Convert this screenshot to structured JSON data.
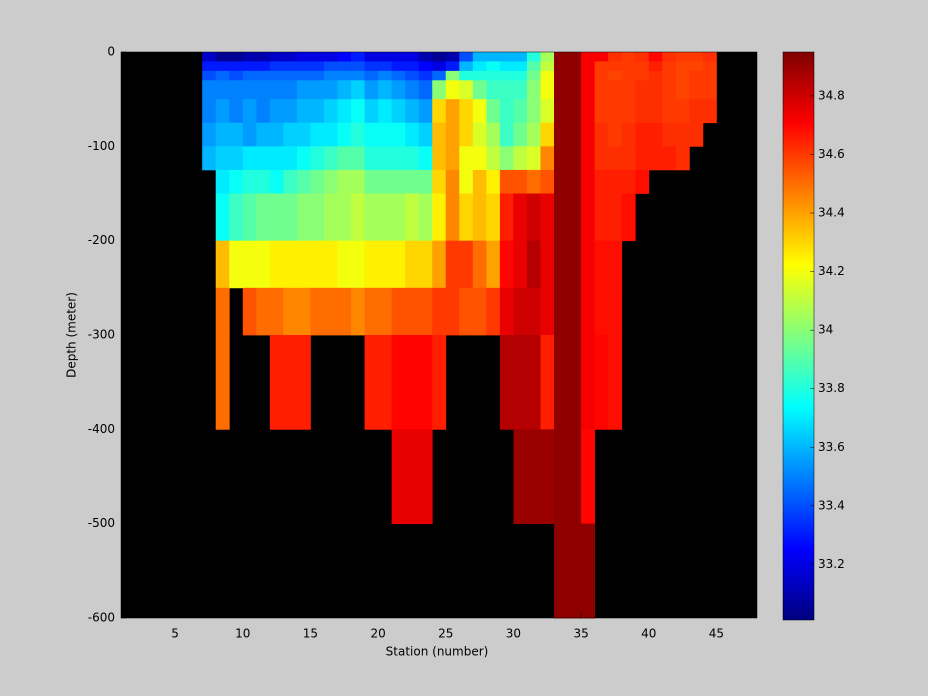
{
  "chart_data": {
    "type": "heatmap",
    "xlabel": "Station (number)",
    "ylabel": "Depth (meter)",
    "xlim": [
      1,
      48
    ],
    "ylim": [
      -600,
      0
    ],
    "xticks": [
      5,
      10,
      15,
      20,
      25,
      30,
      35,
      40,
      45
    ],
    "yticks": [
      0,
      -100,
      -200,
      -300,
      -400,
      -500,
      -600
    ],
    "x_edges": [
      7,
      8,
      9,
      10,
      11,
      12,
      13,
      14,
      15,
      16,
      17,
      18,
      19,
      20,
      21,
      22,
      23,
      24,
      25,
      26,
      27,
      28,
      29,
      30,
      31,
      32,
      33,
      34,
      35,
      36,
      37,
      38,
      39,
      40,
      41,
      42,
      43,
      44,
      45
    ],
    "y_edges": [
      0,
      -10,
      -20,
      -30,
      -50,
      -75,
      -100,
      -125,
      -150,
      -200,
      -250,
      -300,
      -400,
      -500,
      -600
    ],
    "z": [
      [
        33.15,
        33.3,
        33.4,
        33.5,
        33.5,
        33.55,
        33.6,
        null,
        null,
        null,
        null,
        null,
        null,
        null
      ],
      [
        33.05,
        33.3,
        33.45,
        33.5,
        33.55,
        33.6,
        33.65,
        33.7,
        33.75,
        34.35,
        34.5,
        34.5,
        null,
        null
      ],
      [
        33.05,
        33.3,
        33.4,
        33.5,
        33.5,
        33.6,
        33.65,
        33.75,
        33.85,
        34.2,
        null,
        null,
        null,
        null
      ],
      [
        33.1,
        33.3,
        33.45,
        33.5,
        33.55,
        33.55,
        33.7,
        33.8,
        33.9,
        34.2,
        34.55,
        null,
        null,
        null
      ],
      [
        33.1,
        33.3,
        33.45,
        33.5,
        33.5,
        33.6,
        33.7,
        33.8,
        33.95,
        34.2,
        34.5,
        null,
        null,
        null
      ],
      [
        33.15,
        33.35,
        33.45,
        33.5,
        33.55,
        33.6,
        33.7,
        33.75,
        33.95,
        34.25,
        34.5,
        34.65,
        null,
        null
      ],
      [
        33.15,
        33.35,
        33.45,
        33.5,
        33.55,
        33.65,
        33.7,
        33.85,
        33.95,
        34.25,
        34.45,
        34.65,
        null,
        null
      ],
      [
        33.2,
        33.35,
        33.45,
        33.55,
        33.6,
        33.65,
        33.75,
        33.9,
        34.0,
        34.25,
        34.45,
        34.65,
        null,
        null
      ],
      [
        33.2,
        33.35,
        33.45,
        33.55,
        33.6,
        33.7,
        33.8,
        33.95,
        34.0,
        34.25,
        34.5,
        null,
        null,
        null
      ],
      [
        33.2,
        33.4,
        33.5,
        33.55,
        33.65,
        33.7,
        33.85,
        34.0,
        34.05,
        34.25,
        34.5,
        null,
        null,
        null
      ],
      [
        33.25,
        33.4,
        33.5,
        33.6,
        33.7,
        33.75,
        33.9,
        34.05,
        34.05,
        34.2,
        34.5,
        null,
        null,
        null
      ],
      [
        33.3,
        33.4,
        33.5,
        33.65,
        33.75,
        33.8,
        33.9,
        34.05,
        34.1,
        34.2,
        34.45,
        null,
        null,
        null
      ],
      [
        33.2,
        33.35,
        33.45,
        33.55,
        33.65,
        33.75,
        33.8,
        33.95,
        34.05,
        34.25,
        34.5,
        34.65,
        null,
        null
      ],
      [
        33.2,
        33.35,
        33.5,
        33.6,
        33.7,
        33.75,
        33.8,
        33.95,
        34.05,
        34.25,
        34.5,
        34.65,
        null,
        null
      ],
      [
        33.2,
        33.3,
        33.45,
        33.55,
        33.65,
        33.75,
        33.8,
        33.95,
        34.05,
        34.25,
        34.55,
        34.7,
        34.75,
        null
      ],
      [
        33.2,
        33.3,
        33.4,
        33.5,
        33.6,
        33.7,
        33.8,
        33.95,
        34.1,
        34.3,
        34.55,
        34.7,
        34.75,
        null
      ],
      [
        33.1,
        33.25,
        33.35,
        33.45,
        33.55,
        33.65,
        33.75,
        33.95,
        34.05,
        34.3,
        34.55,
        34.7,
        34.75,
        null
      ],
      [
        33.05,
        33.2,
        33.45,
        34.0,
        34.3,
        34.35,
        34.35,
        34.3,
        34.25,
        34.4,
        34.6,
        34.65,
        null,
        null
      ],
      [
        33.1,
        33.3,
        34.0,
        34.2,
        34.4,
        34.4,
        34.4,
        34.45,
        34.45,
        34.6,
        34.6,
        null,
        null,
        null
      ],
      [
        33.4,
        33.6,
        33.8,
        34.15,
        34.3,
        34.3,
        34.2,
        34.2,
        34.3,
        34.6,
        34.55,
        null,
        null,
        null
      ],
      [
        33.6,
        33.7,
        33.8,
        33.95,
        34.2,
        34.15,
        34.2,
        34.35,
        34.35,
        34.5,
        34.55,
        null,
        null,
        null
      ],
      [
        33.6,
        33.75,
        33.8,
        33.85,
        33.95,
        34.05,
        34.1,
        34.25,
        34.3,
        34.4,
        34.6,
        null,
        null,
        null
      ],
      [
        33.6,
        33.7,
        33.8,
        33.85,
        33.85,
        33.85,
        34.0,
        34.55,
        34.65,
        34.7,
        34.75,
        34.85,
        null,
        null
      ],
      [
        33.6,
        33.7,
        33.8,
        33.85,
        33.9,
        33.95,
        34.1,
        34.55,
        34.75,
        34.75,
        34.8,
        34.85,
        34.9,
        null
      ],
      [
        33.8,
        33.9,
        33.95,
        34.0,
        34.0,
        34.05,
        34.15,
        34.5,
        34.8,
        34.85,
        34.8,
        34.85,
        34.9,
        null
      ],
      [
        34.05,
        34.1,
        34.2,
        34.2,
        34.15,
        34.3,
        34.45,
        34.55,
        34.75,
        34.75,
        34.75,
        34.65,
        34.9,
        null
      ],
      [
        34.92,
        34.92,
        34.92,
        34.92,
        34.92,
        34.92,
        34.92,
        34.92,
        34.92,
        34.92,
        34.92,
        34.92,
        34.92,
        34.92
      ],
      [
        34.92,
        34.92,
        34.92,
        34.92,
        34.92,
        34.92,
        34.92,
        34.92,
        34.92,
        34.92,
        34.92,
        34.92,
        34.92,
        34.92
      ],
      [
        34.72,
        34.72,
        34.72,
        34.72,
        34.72,
        34.72,
        34.72,
        34.72,
        34.72,
        34.72,
        34.72,
        34.72,
        34.7,
        34.92
      ],
      [
        34.72,
        34.6,
        34.6,
        34.6,
        34.6,
        34.62,
        34.62,
        34.65,
        34.65,
        34.68,
        34.68,
        34.7,
        null,
        null
      ],
      [
        34.62,
        34.6,
        34.58,
        34.6,
        34.6,
        34.6,
        34.62,
        34.65,
        34.65,
        34.68,
        34.68,
        34.68,
        null,
        null
      ],
      [
        34.6,
        34.6,
        34.6,
        34.6,
        34.6,
        34.62,
        34.62,
        34.65,
        34.68,
        null,
        null,
        null,
        null,
        null
      ],
      [
        34.62,
        34.6,
        34.6,
        34.62,
        34.62,
        34.65,
        34.65,
        34.68,
        null,
        null,
        null,
        null,
        null,
        null
      ],
      [
        34.7,
        34.65,
        34.62,
        34.62,
        34.62,
        34.65,
        34.65,
        null,
        null,
        null,
        null,
        null,
        null,
        null
      ],
      [
        34.62,
        34.6,
        34.6,
        34.6,
        34.6,
        34.62,
        34.65,
        null,
        null,
        null,
        null,
        null,
        null,
        null
      ],
      [
        34.6,
        34.58,
        34.58,
        34.58,
        34.6,
        34.62,
        34.62,
        null,
        null,
        null,
        null,
        null,
        null,
        null
      ],
      [
        34.6,
        34.58,
        34.6,
        34.6,
        34.62,
        34.62,
        null,
        null,
        null,
        null,
        null,
        null,
        null,
        null
      ],
      [
        34.62,
        34.6,
        34.6,
        34.6,
        34.62,
        null,
        null,
        null,
        null,
        null,
        null,
        null,
        null,
        null
      ]
    ],
    "colormap": "jet",
    "clim": [
      33.01,
      34.95
    ],
    "cticks": [
      33.2,
      33.4,
      33.6,
      33.8,
      34,
      34.2,
      34.4,
      34.6,
      34.8
    ]
  }
}
